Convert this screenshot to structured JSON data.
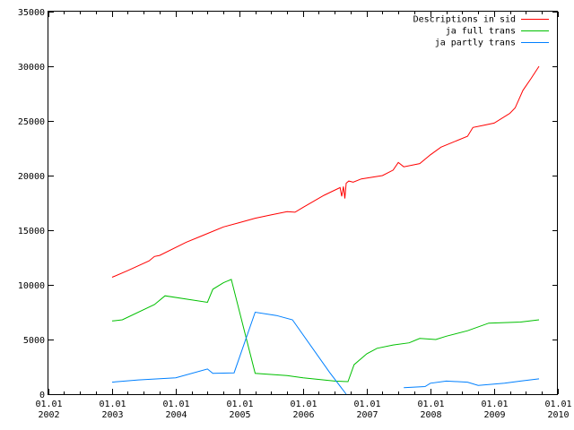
{
  "chart_data": {
    "type": "line",
    "title": "",
    "xlabel": "",
    "ylabel": "",
    "xlim": [
      "2002-01-01",
      "2010-01-01"
    ],
    "ylim": [
      0,
      35000
    ],
    "grid": false,
    "legend_position": "top-right",
    "y_ticks": [
      "0",
      "5000",
      "10000",
      "15000",
      "20000",
      "25000",
      "30000",
      "35000"
    ],
    "x_ticks": [
      {
        "date": "2002-01-01",
        "day": "01.01",
        "year": "2002"
      },
      {
        "date": "2003-01-01",
        "day": "01.01",
        "year": "2003"
      },
      {
        "date": "2004-01-01",
        "day": "01.01",
        "year": "2004"
      },
      {
        "date": "2005-01-01",
        "day": "01.01",
        "year": "2005"
      },
      {
        "date": "2006-01-01",
        "day": "01.01",
        "year": "2006"
      },
      {
        "date": "2007-01-01",
        "day": "01.01",
        "year": "2007"
      },
      {
        "date": "2008-01-01",
        "day": "01.01",
        "year": "2008"
      },
      {
        "date": "2009-01-01",
        "day": "01.01",
        "year": "2009"
      },
      {
        "date": "2010-01-01",
        "day": "01.01",
        "year": "2010"
      }
    ],
    "series": [
      {
        "name": "Descriptions in sid",
        "color": "#ff0000",
        "points": [
          [
            "2003-01-01",
            10700
          ],
          [
            "2003-04-01",
            11300
          ],
          [
            "2003-08-01",
            12200
          ],
          [
            "2003-09-01",
            12600
          ],
          [
            "2003-10-01",
            12700
          ],
          [
            "2004-03-01",
            13900
          ],
          [
            "2004-06-01",
            14500
          ],
          [
            "2004-10-01",
            15300
          ],
          [
            "2005-01-01",
            15700
          ],
          [
            "2005-04-01",
            16100
          ],
          [
            "2005-07-01",
            16400
          ],
          [
            "2005-10-01",
            16700
          ],
          [
            "2005-11-15",
            16650
          ],
          [
            "2006-01-01",
            17100
          ],
          [
            "2006-05-01",
            18200
          ],
          [
            "2006-08-01",
            18900
          ],
          [
            "2006-08-10",
            18100
          ],
          [
            "2006-08-20",
            19000
          ],
          [
            "2006-08-28",
            17900
          ],
          [
            "2006-09-05",
            19300
          ],
          [
            "2006-09-20",
            19500
          ],
          [
            "2006-10-15",
            19400
          ],
          [
            "2006-12-01",
            19700
          ],
          [
            "2007-04-01",
            20000
          ],
          [
            "2007-06-01",
            20500
          ],
          [
            "2007-07-01",
            21200
          ],
          [
            "2007-08-01",
            20800
          ],
          [
            "2007-11-01",
            21100
          ],
          [
            "2008-01-01",
            21900
          ],
          [
            "2008-03-01",
            22600
          ],
          [
            "2008-05-01",
            23000
          ],
          [
            "2008-08-01",
            23600
          ],
          [
            "2008-09-01",
            24400
          ],
          [
            "2008-11-01",
            24600
          ],
          [
            "2009-01-01",
            24800
          ],
          [
            "2009-04-01",
            25700
          ],
          [
            "2009-05-01",
            26200
          ],
          [
            "2009-06-15",
            27800
          ],
          [
            "2009-08-01",
            28900
          ],
          [
            "2009-09-15",
            30000
          ]
        ]
      },
      {
        "name": "ja full trans",
        "color": "#00c000",
        "points": [
          [
            "2003-01-01",
            6700
          ],
          [
            "2003-03-01",
            6800
          ],
          [
            "2003-09-01",
            8200
          ],
          [
            "2003-11-01",
            9000
          ],
          [
            "2004-07-01",
            8400
          ],
          [
            "2004-08-01",
            9600
          ],
          [
            "2004-10-01",
            10200
          ],
          [
            "2004-11-15",
            10500
          ],
          [
            "2005-04-01",
            1900
          ],
          [
            "2005-10-01",
            1700
          ],
          [
            "2006-01-01",
            1500
          ],
          [
            "2006-07-01",
            1200
          ],
          [
            "2006-09-15",
            1150
          ],
          [
            "2006-10-20",
            2700
          ],
          [
            "2007-01-01",
            3700
          ],
          [
            "2007-03-01",
            4200
          ],
          [
            "2007-06-01",
            4500
          ],
          [
            "2007-09-01",
            4700
          ],
          [
            "2007-11-01",
            5100
          ],
          [
            "2008-02-01",
            5000
          ],
          [
            "2008-04-01",
            5300
          ],
          [
            "2008-08-01",
            5800
          ],
          [
            "2008-12-01",
            6500
          ],
          [
            "2009-06-01",
            6600
          ],
          [
            "2009-09-15",
            6800
          ]
        ]
      },
      {
        "name": "ja partly trans",
        "color": "#0080ff",
        "points": [
          [
            "2003-01-01",
            1100
          ],
          [
            "2003-06-01",
            1300
          ],
          [
            "2004-01-01",
            1500
          ],
          [
            "2004-07-01",
            2300
          ],
          [
            "2004-08-01",
            1900
          ],
          [
            "2004-12-01",
            1950
          ],
          [
            "2005-04-01",
            7500
          ],
          [
            "2005-08-01",
            7200
          ],
          [
            "2005-11-01",
            6800
          ],
          [
            "2006-06-01",
            2000
          ],
          [
            "2006-09-05",
            0
          ]
        ],
        "segments_after_gap": [
          [
            "2007-08-01",
            600
          ],
          [
            "2007-12-01",
            700
          ],
          [
            "2008-01-01",
            1000
          ],
          [
            "2008-04-01",
            1200
          ],
          [
            "2008-08-01",
            1100
          ],
          [
            "2008-10-01",
            800
          ],
          [
            "2009-03-01",
            1000
          ],
          [
            "2009-06-01",
            1200
          ],
          [
            "2009-09-15",
            1400
          ]
        ]
      }
    ]
  }
}
